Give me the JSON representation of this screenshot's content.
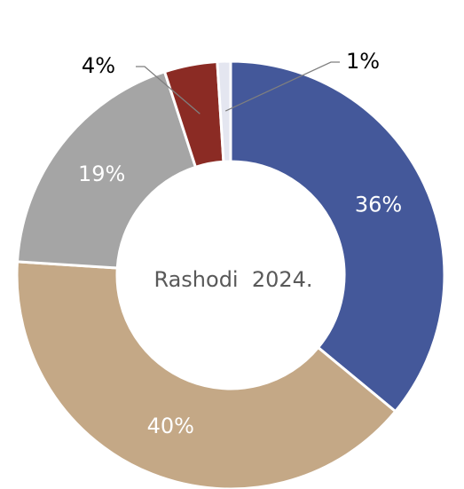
{
  "chart_data": {
    "type": "donut",
    "title": "Rashodi  2024.",
    "values": [
      36,
      40,
      19,
      4,
      1
    ],
    "value_labels": [
      "36%",
      "40%",
      "19%",
      "4%",
      "1%"
    ],
    "colors": [
      "#44589a",
      "#c4a886",
      "#a5a5a5",
      "#8b2b24",
      "#e4e6f0"
    ]
  }
}
